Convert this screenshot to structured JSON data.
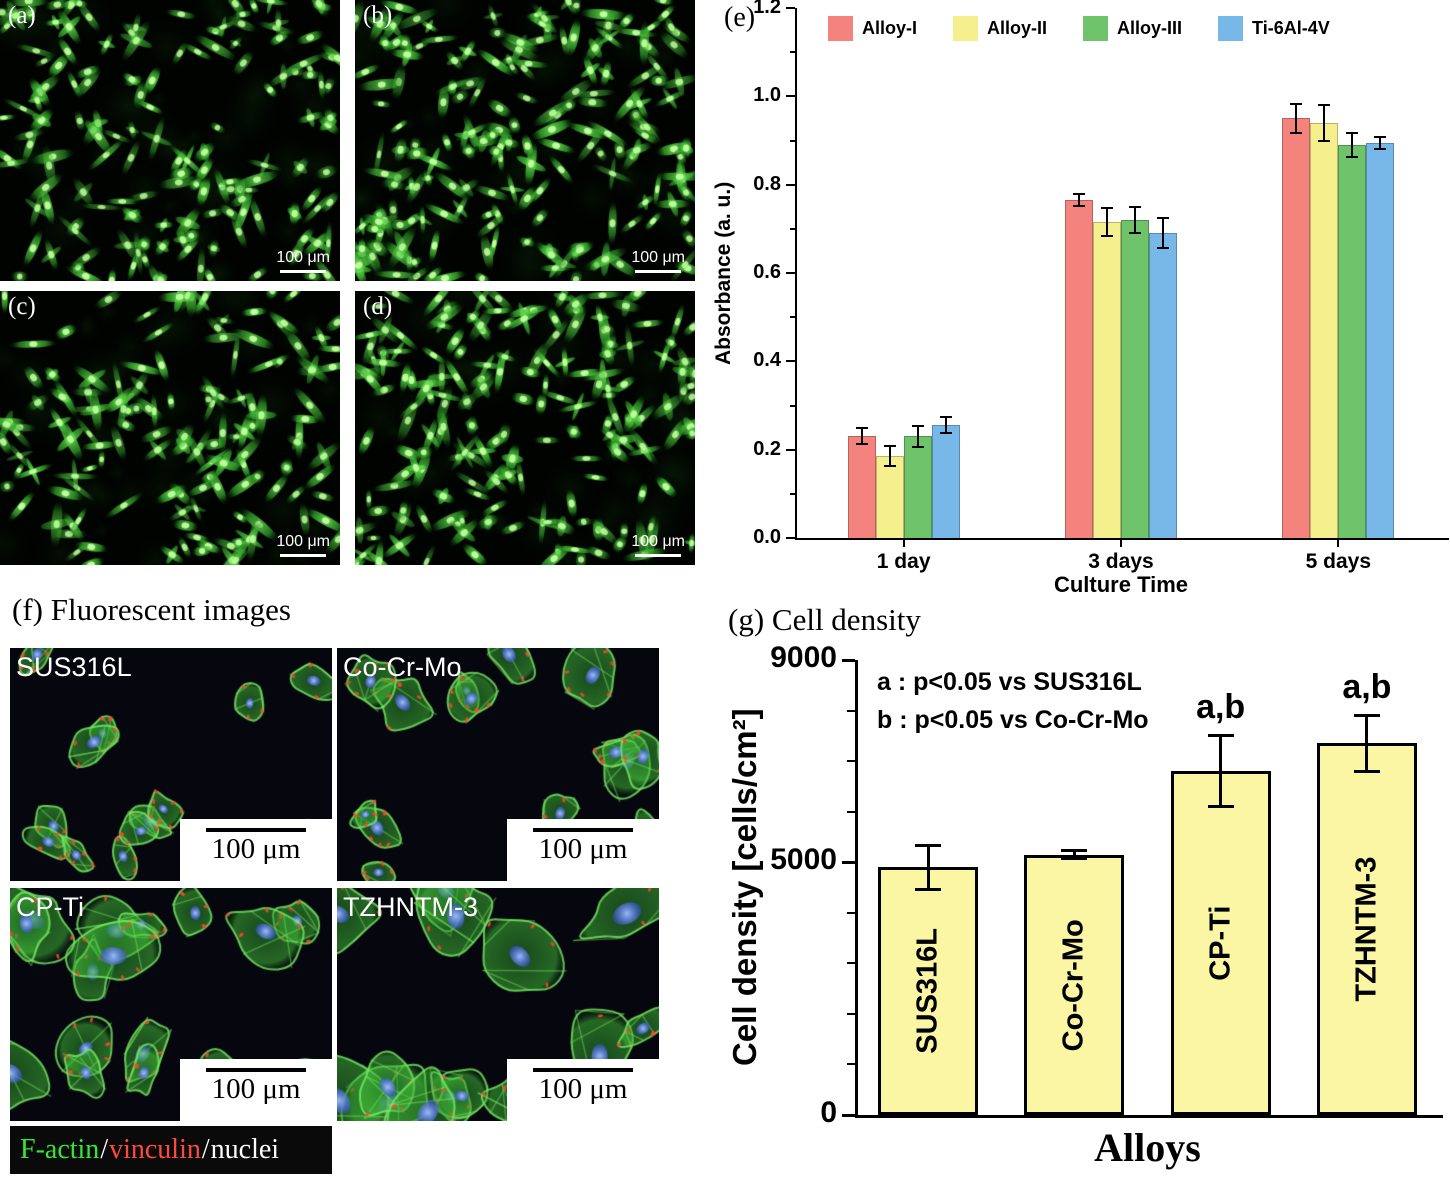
{
  "figure": {
    "panels_abcd": [
      {
        "label": "(a)",
        "scalebar": "100 μm"
      },
      {
        "label": "(b)",
        "scalebar": "100 μm"
      },
      {
        "label": "(c)",
        "scalebar": "100 μm"
      },
      {
        "label": "(d)",
        "scalebar": "100 μm"
      }
    ],
    "section_f": {
      "title": "(f) Fluorescent images",
      "panels": [
        {
          "label": "SUS316L",
          "scalebar": "100 μm"
        },
        {
          "label": "Co-Cr-Mo",
          "scalebar": "100 μm"
        },
        {
          "label": "CP-Ti",
          "scalebar": "100 μm"
        },
        {
          "label": "TZHNTM-3",
          "scalebar": "100 μm"
        }
      ],
      "stain_legend": [
        {
          "text": "F-actin",
          "color": "#33e833"
        },
        {
          "text": "/",
          "color": "#ffffff"
        },
        {
          "text": "vinculin",
          "color": "#ff4a38"
        },
        {
          "text": "/",
          "color": "#ffffff"
        },
        {
          "text": "nuclei",
          "color": "#ffffff"
        }
      ]
    }
  },
  "chart_data": [
    {
      "type": "bar",
      "panel_label": "(e)",
      "categories": [
        "1 day",
        "3 days",
        "5 days"
      ],
      "series": [
        {
          "name": "Alloy-I",
          "color": "#f4837d",
          "values": [
            0.23,
            0.765,
            0.95
          ],
          "errors": [
            0.018,
            0.014,
            0.032
          ]
        },
        {
          "name": "Alloy-II",
          "color": "#f6ef8e",
          "values": [
            0.185,
            0.715,
            0.94
          ],
          "errors": [
            0.023,
            0.032,
            0.04
          ]
        },
        {
          "name": "Alloy-III",
          "color": "#6ec36b",
          "values": [
            0.23,
            0.72,
            0.89
          ],
          "errors": [
            0.023,
            0.03,
            0.027
          ]
        },
        {
          "name": "Ti-6Al-4V",
          "color": "#77b8e8",
          "values": [
            0.255,
            0.69,
            0.895
          ],
          "errors": [
            0.018,
            0.034,
            0.014
          ]
        }
      ],
      "xlabel": "Culture Time",
      "ylabel": "Absorbance (a. u.)",
      "ylim": [
        0,
        1.2
      ],
      "yticks": [
        0,
        0.2,
        0.4,
        0.6,
        0.8,
        1.0,
        1.2
      ],
      "legend_position": "top",
      "grid": false
    },
    {
      "type": "bar",
      "title": "(g) Cell density",
      "categories": [
        "SUS316L",
        "Co-Cr-Mo",
        "CP-Ti",
        "TZHNTM-3"
      ],
      "values": [
        4900,
        5150,
        6800,
        7350
      ],
      "errors": [
        440,
        80,
        700,
        550
      ],
      "bar_color": "#faf6a3",
      "significance": [
        "",
        "",
        "a,b",
        "a,b"
      ],
      "annotations": [
        "a : p<0.05 vs SUS316L",
        "b : p<0.05 vs Co-Cr-Mo"
      ],
      "xlabel": "Alloys",
      "ylabel": "Cell density [cells/cm²]",
      "ylim": [
        0,
        9000
      ],
      "yticks": [
        0,
        5000,
        9000
      ],
      "grid": false
    }
  ]
}
